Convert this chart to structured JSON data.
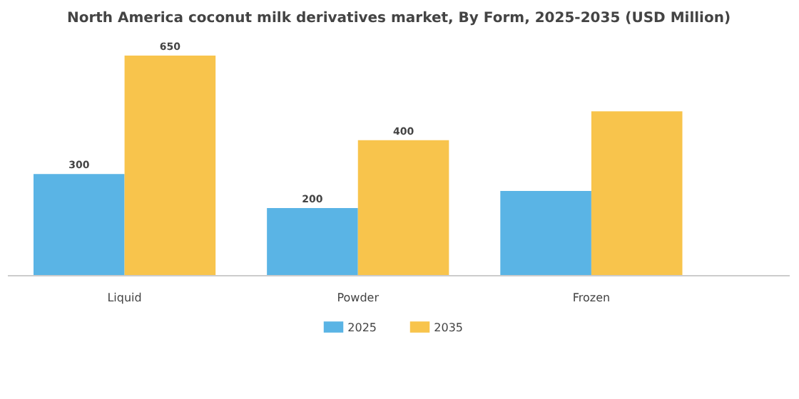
{
  "chart_data": {
    "type": "bar",
    "title": "North America coconut milk derivatives market, By Form, 2025-2035 (USD Million)",
    "categories": [
      "Liquid",
      "Powder",
      "Frozen"
    ],
    "series": [
      {
        "name": "2025",
        "color": "#5ab4e5",
        "values": [
          300,
          200,
          250
        ],
        "value_labels": [
          "300",
          "200",
          null
        ]
      },
      {
        "name": "2035",
        "color": "#f8c44c",
        "values": [
          650,
          400,
          485
        ],
        "value_labels": [
          "650",
          "400",
          null
        ]
      }
    ],
    "legend": "bottom"
  }
}
